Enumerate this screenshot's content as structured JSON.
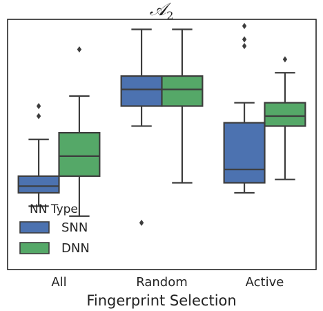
{
  "chart_data": {
    "type": "box",
    "title_main": "𝒜",
    "title_sub": "2",
    "xlabel": "Fingerprint Selection",
    "ylabel": "",
    "categories": [
      "All",
      "Random",
      "Active"
    ],
    "legend": {
      "title": "NN Type",
      "placement": "lower-left"
    },
    "series": [
      {
        "name": "SNN",
        "color": "#4c72b0",
        "boxes": [
          {
            "q1": 2.3,
            "median": 2.5,
            "q3": 2.8,
            "whisker_low": 1.9,
            "whisker_high": 3.9,
            "outliers": [
              4.6,
              4.9
            ]
          },
          {
            "q1": 4.9,
            "median": 5.4,
            "q3": 5.8,
            "whisker_low": 4.3,
            "whisker_high": 7.2,
            "outliers": [
              1.4
            ]
          },
          {
            "q1": 2.6,
            "median": 3.0,
            "q3": 4.4,
            "whisker_low": 2.3,
            "whisker_high": 5.0,
            "outliers": [
              6.7,
              6.9,
              7.3
            ]
          }
        ]
      },
      {
        "name": "DNN",
        "color": "#55a868",
        "boxes": [
          {
            "q1": 2.8,
            "median": 3.4,
            "q3": 4.1,
            "whisker_low": 1.6,
            "whisker_high": 5.2,
            "outliers": [
              6.6
            ]
          },
          {
            "q1": 4.9,
            "median": 5.4,
            "q3": 5.8,
            "whisker_low": 2.6,
            "whisker_high": 7.2,
            "outliers": []
          },
          {
            "q1": 4.3,
            "median": 4.6,
            "q3": 5.0,
            "whisker_low": 2.7,
            "whisker_high": 5.9,
            "outliers": [
              6.3
            ]
          }
        ]
      }
    ],
    "ylim": [
      0,
      7.5
    ],
    "grid": false
  }
}
